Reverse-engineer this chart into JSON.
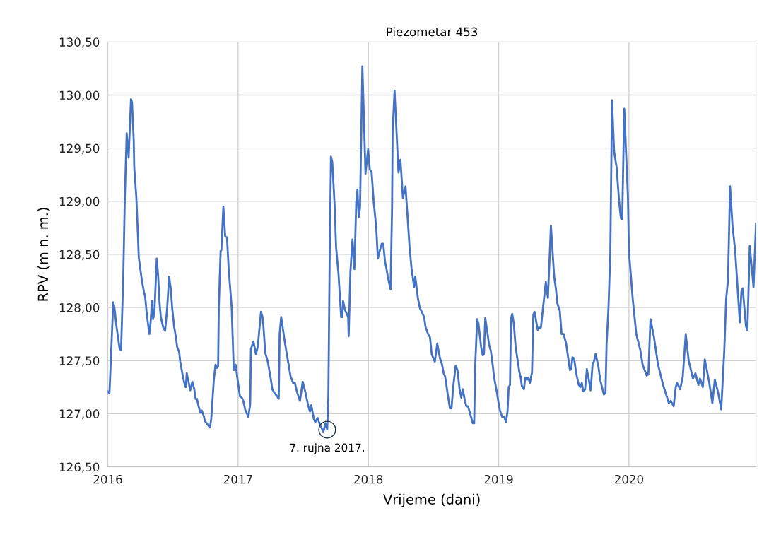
{
  "chart_data": {
    "type": "line",
    "title": "Piezometar 453",
    "xlabel": "Vrijeme (dani)",
    "ylabel": "RPV (m n. m.)",
    "xlim": [
      2016,
      2020.975
    ],
    "xticks": [
      2016,
      2017,
      2018,
      2019,
      2020
    ],
    "ylim": [
      126.5,
      130.5
    ],
    "yticks": [
      {
        "value": 126.5,
        "label": "126,50"
      },
      {
        "value": 127,
        "label": "127,00"
      },
      {
        "value": 127.5,
        "label": "127,50"
      },
      {
        "value": 128,
        "label": "128,00"
      },
      {
        "value": 128.5,
        "label": "128,50"
      },
      {
        "value": 129,
        "label": "129,00"
      },
      {
        "value": 129.5,
        "label": "129,50"
      },
      {
        "value": 130,
        "label": "130,00"
      },
      {
        "value": 130.5,
        "label": "130,50"
      }
    ],
    "grid": true,
    "marker": "none",
    "line_style": "solid",
    "annotations": [
      {
        "text": "7. rujna 2017.",
        "x": 2017.684,
        "y": 126.85
      }
    ],
    "series": [
      {
        "color": "#4472c4",
        "x": [
          2016.0,
          2016.013,
          2016.042,
          2016.051,
          2016.067,
          2016.091,
          2016.102,
          2016.119,
          2016.131,
          2016.145,
          2016.16,
          2016.178,
          2016.186,
          2016.199,
          2016.203,
          2016.219,
          2016.232,
          2016.238,
          2016.261,
          2016.277,
          2016.287,
          2016.3,
          2016.319,
          2016.329,
          2016.339,
          2016.348,
          2016.358,
          2016.376,
          2016.387,
          2016.397,
          2016.407,
          2016.426,
          2016.44,
          2016.455,
          2016.471,
          2016.484,
          2016.494,
          2016.509,
          2016.523,
          2016.532,
          2016.548,
          2016.556,
          2016.572,
          2016.585,
          2016.599,
          2016.606,
          2016.62,
          2016.633,
          2016.649,
          2016.664,
          2016.674,
          2016.684,
          2016.697,
          2016.711,
          2016.721,
          2016.736,
          2016.746,
          2016.765,
          2016.784,
          2016.794,
          2016.814,
          2016.827,
          2016.837,
          2016.847,
          2016.852,
          2016.866,
          2016.872,
          2016.887,
          2016.901,
          2016.915,
          2016.928,
          2016.951,
          2016.967,
          2016.982,
          2016.996,
          2017.015,
          2017.029,
          2017.04,
          2017.054,
          2017.079,
          2017.093,
          2017.099,
          2017.118,
          2017.137,
          2017.151,
          2017.176,
          2017.19,
          2017.209,
          2017.228,
          2017.248,
          2017.263,
          2017.277,
          2017.296,
          2017.312,
          2017.319,
          2017.331,
          2017.345,
          2017.358,
          2017.377,
          2017.403,
          2017.422,
          2017.436,
          2017.451,
          2017.475,
          2017.496,
          2017.515,
          2017.539,
          2017.552,
          2017.562,
          2017.581,
          2017.593,
          2017.61,
          2017.63,
          2017.655,
          2017.671,
          2017.684,
          2017.693,
          2017.703,
          2017.713,
          2017.723,
          2017.742,
          2017.752,
          2017.771,
          2017.791,
          2017.8,
          2017.806,
          2017.82,
          2017.845,
          2017.849,
          2017.862,
          2017.878,
          2017.893,
          2017.907,
          2017.916,
          2017.926,
          2017.936,
          2017.954,
          2017.978,
          2017.998,
          2018.011,
          2018.025,
          2018.041,
          2018.06,
          2018.073,
          2018.089,
          2018.103,
          2018.114,
          2018.128,
          2018.137,
          2018.149,
          2018.17,
          2018.182,
          2018.186,
          2018.201,
          2018.219,
          2018.231,
          2018.246,
          2018.265,
          2018.285,
          2018.302,
          2018.316,
          2018.331,
          2018.351,
          2018.36,
          2018.38,
          2018.394,
          2018.409,
          2018.428,
          2018.438,
          2018.458,
          2018.473,
          2018.486,
          2018.51,
          2018.529,
          2018.55,
          2018.564,
          2018.578,
          2018.589,
          2018.608,
          2018.626,
          2018.638,
          2018.651,
          2018.67,
          2018.684,
          2018.7,
          2018.713,
          2018.725,
          2018.738,
          2018.752,
          2018.764,
          2018.777,
          2018.801,
          2018.812,
          2018.82,
          2018.835,
          2018.845,
          2018.865,
          2018.878,
          2018.887,
          2018.897,
          2018.913,
          2018.926,
          2018.94,
          2018.955,
          2018.965,
          2018.985,
          2018.998,
          2019.01,
          2019.027,
          2019.043,
          2019.056,
          2019.068,
          2019.077,
          2019.087,
          2019.095,
          2019.104,
          2019.116,
          2019.13,
          2019.141,
          2019.159,
          2019.168,
          2019.178,
          2019.194,
          2019.204,
          2019.217,
          2019.227,
          2019.24,
          2019.256,
          2019.266,
          2019.275,
          2019.299,
          2019.31,
          2019.324,
          2019.339,
          2019.362,
          2019.378,
          2019.401,
          2019.426,
          2019.44,
          2019.45,
          2019.469,
          2019.483,
          2019.498,
          2019.518,
          2019.533,
          2019.547,
          2019.557,
          2019.566,
          2019.579,
          2019.595,
          2019.615,
          2019.628,
          2019.638,
          2019.649,
          2019.663,
          2019.677,
          2019.692,
          2019.706,
          2019.721,
          2019.731,
          2019.744,
          2019.766,
          2019.779,
          2019.793,
          2019.808,
          2019.82,
          2019.828,
          2019.843,
          2019.857,
          2019.87,
          2019.886,
          2019.905,
          2019.925,
          2019.938,
          2019.948,
          2019.964,
          2019.979,
          2019.992,
          2020.0,
          2020.029,
          2020.056,
          2020.087,
          2020.105,
          2020.136,
          2020.149,
          2020.165,
          2020.192,
          2020.223,
          2020.262,
          2020.306,
          2020.32,
          2020.343,
          2020.359,
          2020.369,
          2020.393,
          2020.413,
          2020.436,
          2020.458,
          2020.491,
          2020.51,
          2020.533,
          2020.545,
          2020.567,
          2020.582,
          2020.615,
          2020.64,
          2020.659,
          2020.684,
          2020.708,
          2020.731,
          2020.746,
          2020.76,
          2020.776,
          2020.795,
          2020.814,
          2020.851,
          2020.863,
          2020.873,
          2020.898,
          2020.909,
          2020.927,
          2020.956,
          2020.975
        ],
        "values": [
          127.21,
          127.19,
          128.05,
          128.0,
          127.82,
          127.61,
          127.6,
          128.29,
          129.04,
          129.64,
          129.41,
          129.96,
          129.93,
          129.58,
          129.32,
          129.04,
          128.66,
          128.47,
          128.26,
          128.15,
          128.1,
          127.93,
          127.75,
          127.86,
          128.06,
          127.89,
          127.96,
          128.46,
          128.29,
          128.05,
          127.91,
          127.81,
          127.78,
          127.98,
          128.29,
          128.17,
          128.0,
          127.82,
          127.72,
          127.63,
          127.58,
          127.49,
          127.38,
          127.3,
          127.25,
          127.38,
          127.3,
          127.22,
          127.3,
          127.23,
          127.14,
          127.14,
          127.07,
          127.01,
          127.03,
          126.98,
          126.93,
          126.9,
          126.87,
          126.95,
          127.32,
          127.46,
          127.43,
          127.45,
          128.0,
          128.53,
          128.54,
          128.95,
          128.67,
          128.66,
          128.36,
          128.0,
          127.41,
          127.46,
          127.32,
          127.16,
          127.15,
          127.12,
          127.04,
          126.97,
          127.09,
          127.61,
          127.68,
          127.56,
          127.63,
          127.96,
          127.9,
          127.57,
          127.49,
          127.35,
          127.23,
          127.2,
          127.17,
          127.14,
          127.75,
          127.91,
          127.79,
          127.68,
          127.54,
          127.35,
          127.29,
          127.29,
          127.21,
          127.12,
          127.3,
          127.21,
          127.07,
          127.02,
          127.08,
          126.95,
          126.92,
          126.96,
          126.89,
          126.83,
          126.91,
          126.85,
          127.16,
          128.47,
          129.42,
          129.37,
          128.94,
          128.57,
          128.31,
          127.91,
          127.91,
          128.06,
          127.98,
          127.91,
          127.73,
          128.33,
          128.64,
          128.36,
          128.99,
          129.11,
          128.85,
          128.94,
          130.27,
          129.26,
          129.49,
          129.3,
          129.27,
          128.99,
          128.76,
          128.46,
          128.54,
          128.6,
          128.6,
          128.43,
          128.38,
          128.29,
          128.17,
          128.94,
          129.66,
          130.04,
          129.58,
          129.27,
          129.39,
          129.03,
          129.14,
          128.83,
          128.57,
          128.37,
          128.19,
          128.29,
          128.09,
          128.0,
          127.96,
          127.91,
          127.82,
          127.75,
          127.72,
          127.56,
          127.49,
          127.66,
          127.52,
          127.47,
          127.38,
          127.35,
          127.19,
          127.05,
          127.05,
          127.25,
          127.45,
          127.41,
          127.23,
          127.15,
          127.23,
          127.14,
          127.07,
          127.07,
          127.02,
          126.91,
          126.91,
          127.45,
          127.89,
          127.85,
          127.63,
          127.55,
          127.56,
          127.9,
          127.77,
          127.65,
          127.59,
          127.45,
          127.34,
          127.21,
          127.11,
          127.03,
          126.97,
          126.97,
          126.92,
          127.02,
          127.25,
          127.27,
          127.9,
          127.94,
          127.85,
          127.63,
          127.54,
          127.39,
          127.35,
          127.26,
          127.23,
          127.34,
          127.32,
          127.34,
          127.29,
          127.39,
          127.93,
          127.96,
          127.79,
          127.81,
          127.81,
          127.98,
          128.24,
          128.09,
          128.77,
          128.29,
          128.17,
          128.04,
          127.97,
          127.75,
          127.75,
          127.66,
          127.53,
          127.41,
          127.42,
          127.53,
          127.52,
          127.38,
          127.27,
          127.25,
          127.29,
          127.21,
          127.23,
          127.42,
          127.32,
          127.22,
          127.47,
          127.49,
          127.56,
          127.44,
          127.32,
          127.25,
          127.18,
          127.2,
          127.65,
          128.0,
          128.52,
          129.95,
          129.47,
          129.32,
          128.99,
          128.84,
          128.83,
          129.87,
          129.42,
          129.04,
          128.52,
          128.08,
          127.75,
          127.6,
          127.46,
          127.36,
          127.37,
          127.89,
          127.72,
          127.46,
          127.27,
          127.1,
          127.12,
          127.07,
          127.25,
          127.29,
          127.23,
          127.35,
          127.75,
          127.5,
          127.33,
          127.38,
          127.27,
          127.33,
          127.25,
          127.51,
          127.3,
          127.1,
          127.32,
          127.2,
          127.04,
          127.58,
          128.08,
          128.26,
          129.14,
          128.76,
          128.55,
          127.86,
          128.15,
          128.18,
          127.82,
          127.79,
          128.58,
          128.19,
          128.79
        ]
      }
    ]
  }
}
